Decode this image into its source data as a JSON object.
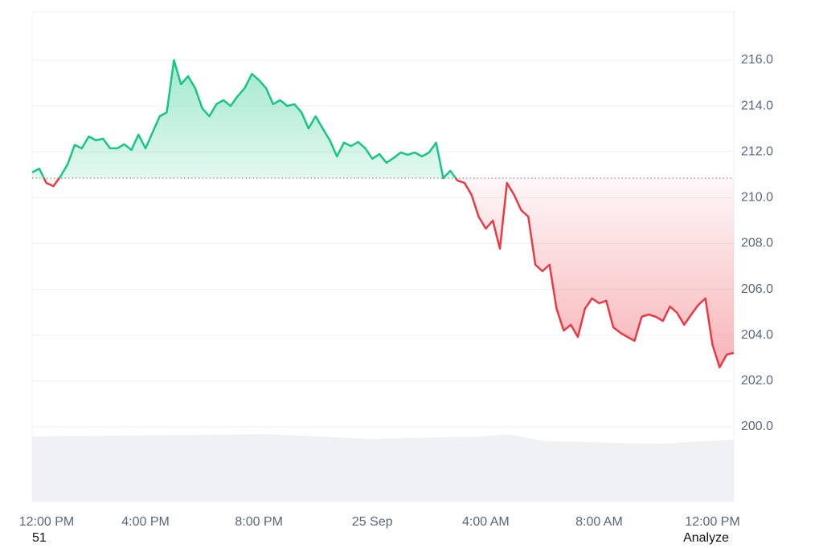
{
  "chart_data": {
    "type": "baseline-line",
    "x": [
      0,
      0.25,
      0.5,
      0.75,
      1,
      1.25,
      1.5,
      1.75,
      2,
      2.25,
      2.5,
      2.75,
      3,
      3.25,
      3.5,
      3.75,
      4,
      4.25,
      4.5,
      4.75,
      5,
      5.25,
      5.5,
      5.75,
      6,
      6.25,
      6.5,
      6.75,
      7,
      7.25,
      7.5,
      7.75,
      8,
      8.25,
      8.5,
      8.75,
      9,
      9.25,
      9.5,
      9.75,
      10,
      10.25,
      10.5,
      10.75,
      11,
      11.25,
      11.5,
      11.75,
      12,
      12.25,
      12.5,
      12.75,
      13,
      13.25,
      13.5,
      13.75,
      14,
      14.25,
      14.5,
      14.75,
      15,
      15.25,
      15.5,
      15.75,
      16,
      16.25,
      16.5,
      16.75,
      17,
      17.25,
      17.5,
      17.75,
      18,
      18.25,
      18.5,
      18.75,
      19,
      19.25,
      19.5,
      19.75,
      20,
      20.25,
      20.5,
      20.75,
      21,
      21.25,
      21.5,
      21.75,
      22,
      22.25,
      22.5,
      22.75,
      23,
      23.25,
      23.5,
      23.75,
      24,
      24.25,
      24.5,
      24.75
    ],
    "values": [
      211.1,
      211.27,
      210.64,
      210.5,
      210.93,
      211.45,
      212.3,
      212.15,
      212.67,
      212.5,
      212.57,
      212.15,
      212.15,
      212.33,
      212.08,
      212.75,
      212.15,
      212.85,
      213.55,
      213.72,
      216.0,
      214.95,
      215.3,
      214.78,
      213.9,
      213.55,
      214.08,
      214.25,
      214.0,
      214.43,
      214.78,
      215.4,
      215.13,
      214.78,
      214.08,
      214.25,
      214.0,
      214.08,
      213.72,
      213.02,
      213.55,
      213.02,
      212.5,
      211.8,
      212.4,
      212.25,
      212.43,
      212.15,
      211.7,
      211.9,
      211.52,
      211.73,
      211.97,
      211.87,
      211.97,
      211.8,
      211.97,
      212.4,
      210.85,
      211.17,
      210.75,
      210.64,
      210.12,
      209.17,
      208.65,
      209.0,
      207.77,
      210.64,
      210.12,
      209.45,
      209.17,
      207.07,
      206.79,
      207.07,
      205.15,
      204.2,
      204.45,
      203.92,
      205.15,
      205.6,
      205.39,
      205.5,
      204.34,
      204.1,
      203.92,
      203.75,
      204.8,
      204.9,
      204.8,
      204.62,
      205.25,
      204.97,
      204.45,
      204.9,
      205.32,
      205.6,
      203.57,
      202.59,
      203.15,
      203.22
    ],
    "baseline": 210.85,
    "up_color": "#16c784",
    "down_color": "#ea3943",
    "xlim": [
      0,
      24.75
    ],
    "xticks": [
      {
        "value": 0,
        "label": "12:00 PM"
      },
      {
        "value": 4,
        "label": "4:00 PM"
      },
      {
        "value": 8,
        "label": "8:00 PM"
      },
      {
        "value": 12,
        "label": "25 Sep"
      },
      {
        "value": 16,
        "label": "4:00 AM"
      },
      {
        "value": 20,
        "label": "8:00 AM"
      },
      {
        "value": 24,
        "label": "12:00 PM"
      }
    ],
    "ylim": [
      196.74,
      218.1
    ],
    "yticks": [
      {
        "value": 200,
        "label": "200.0"
      },
      {
        "value": 202,
        "label": "202.0"
      },
      {
        "value": 204,
        "label": "204.0"
      },
      {
        "value": 206,
        "label": "206.0"
      },
      {
        "value": 208,
        "label": "208.0"
      },
      {
        "value": 210,
        "label": "210.0"
      },
      {
        "value": 212,
        "label": "212.0"
      },
      {
        "value": 214,
        "label": "214.0"
      },
      {
        "value": 216,
        "label": "216.0"
      }
    ],
    "grid": true
  },
  "footer": {
    "left": "51",
    "right": "Analyze"
  }
}
